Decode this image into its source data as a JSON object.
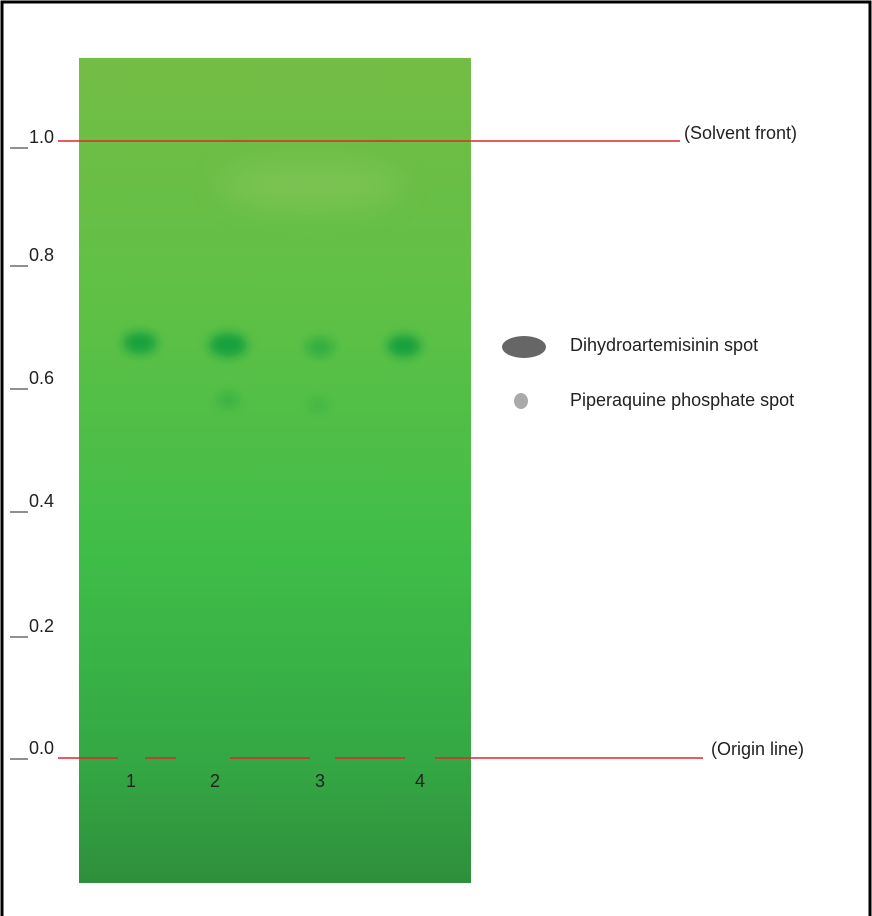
{
  "rf_axis": {
    "labels": [
      "1.0",
      "0.8",
      "0.6",
      "0.4",
      "0.2",
      "0.0"
    ]
  },
  "reference_lines": {
    "solvent_front": "(Solvent front)",
    "origin": "(Origin line)"
  },
  "lanes": [
    "1",
    "2",
    "3",
    "4"
  ],
  "legend": [
    {
      "label": "Dihydroartemisinin spot"
    },
    {
      "label": "Piperaquine phosphate spot"
    }
  ]
}
